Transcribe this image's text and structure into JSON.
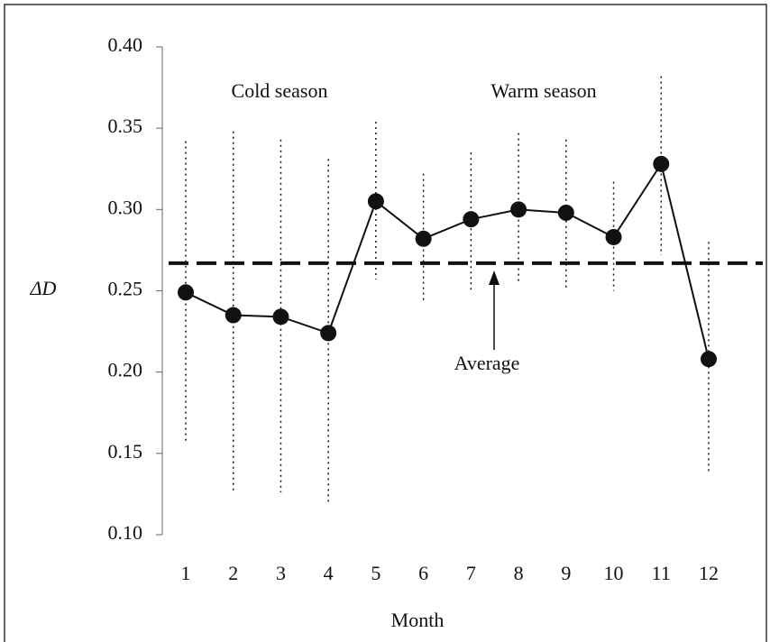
{
  "chart_data": {
    "type": "line",
    "xlabel": "Month",
    "ylabel": "ΔD",
    "categories": [
      "1",
      "2",
      "3",
      "4",
      "5",
      "6",
      "7",
      "8",
      "9",
      "10",
      "11",
      "12"
    ],
    "series": [
      {
        "color": "#111111",
        "values": [
          0.249,
          0.235,
          0.234,
          0.224,
          0.305,
          0.282,
          0.294,
          0.3,
          0.298,
          0.283,
          0.328,
          0.208
        ],
        "upper": [
          0.342,
          0.348,
          0.343,
          0.331,
          0.354,
          0.322,
          0.335,
          0.347,
          0.343,
          0.317,
          0.382,
          0.28
        ],
        "lower": [
          0.157,
          0.125,
          0.126,
          0.119,
          0.257,
          0.244,
          0.25,
          0.256,
          0.252,
          0.25,
          0.272,
          0.138
        ]
      }
    ],
    "average": {
      "label": "Average",
      "value": 0.267
    },
    "annotations": [
      "Cold season",
      "Warm season"
    ],
    "ylim": [
      0.1,
      0.4
    ],
    "yticks": [
      {
        "value": 0.1,
        "label": "0.10"
      },
      {
        "value": 0.15,
        "label": "0.15"
      },
      {
        "value": 0.2,
        "label": "0.20"
      },
      {
        "value": 0.25,
        "label": "0.25"
      },
      {
        "value": 0.3,
        "label": "0.30"
      },
      {
        "value": 0.35,
        "label": "0.35"
      },
      {
        "value": 0.4,
        "label": "0.40"
      }
    ],
    "grid": false
  }
}
